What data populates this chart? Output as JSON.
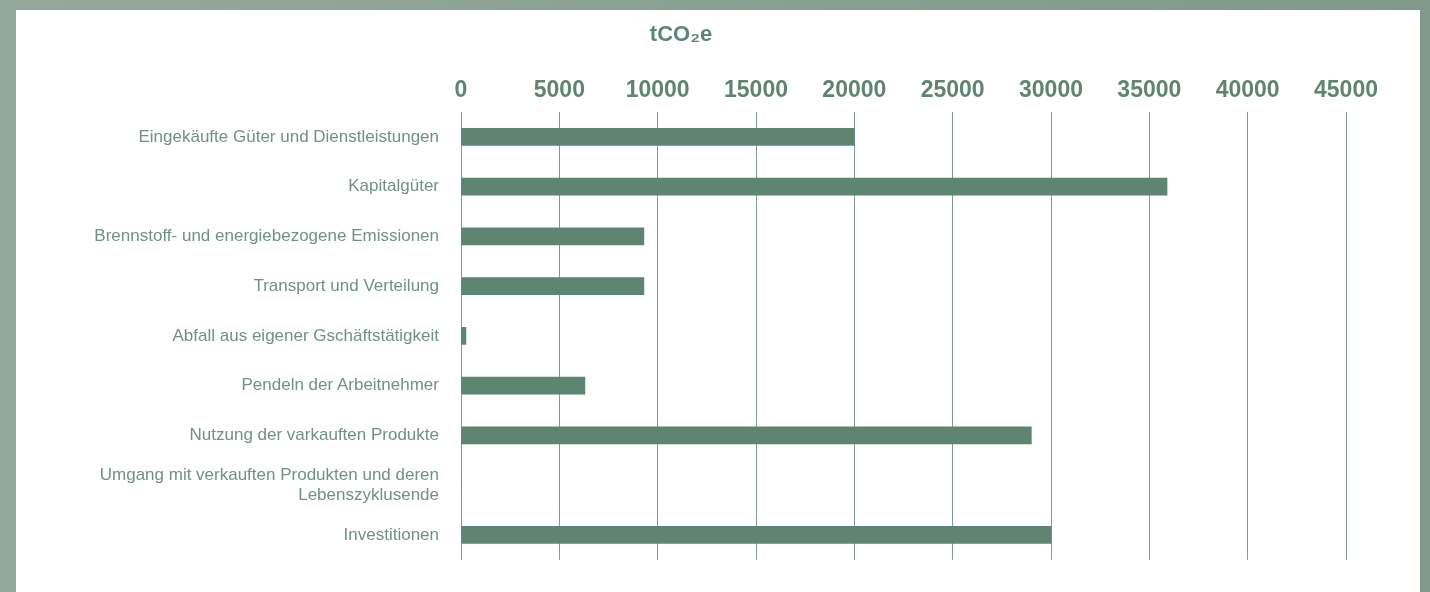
{
  "chart_data": {
    "type": "bar",
    "orientation": "horizontal",
    "title": "tCO₂e",
    "categories": [
      "Eingekäufte Güter und Dienstleistungen",
      "Kapitalgüter",
      "Brennstoff- und energiebezogene Emissionen",
      "Transport und Verteilung",
      "Abfall aus eigener Gschäftstätigkeit",
      "Pendeln der Arbeitnehmer",
      "Nutzung der varkauften Produkte",
      "Umgang mit verkauften Produkten und deren Lebenszyklusende",
      "Investitionen"
    ],
    "values": [
      20000,
      35900,
      9300,
      9300,
      250,
      6300,
      29000,
      0,
      30000
    ],
    "color": "#5e8472",
    "xlim": [
      0,
      45000
    ],
    "xticks": [
      0,
      {
        "value": 5000,
        "label": "5000"
      },
      {
        "value": 10000,
        "label": "10000"
      },
      {
        "value": 15000,
        "label": "15000"
      },
      {
        "value": 20000,
        "label": "20000"
      },
      {
        "value": 25000,
        "label": "25000"
      },
      {
        "value": 30000,
        "label": "30000"
      },
      {
        "value": 35000,
        "label": "35000"
      },
      {
        "value": 40000,
        "label": "40000"
      },
      {
        "value": 45000,
        "label": "45000"
      }
    ],
    "grid": "x",
    "legend": false
  }
}
